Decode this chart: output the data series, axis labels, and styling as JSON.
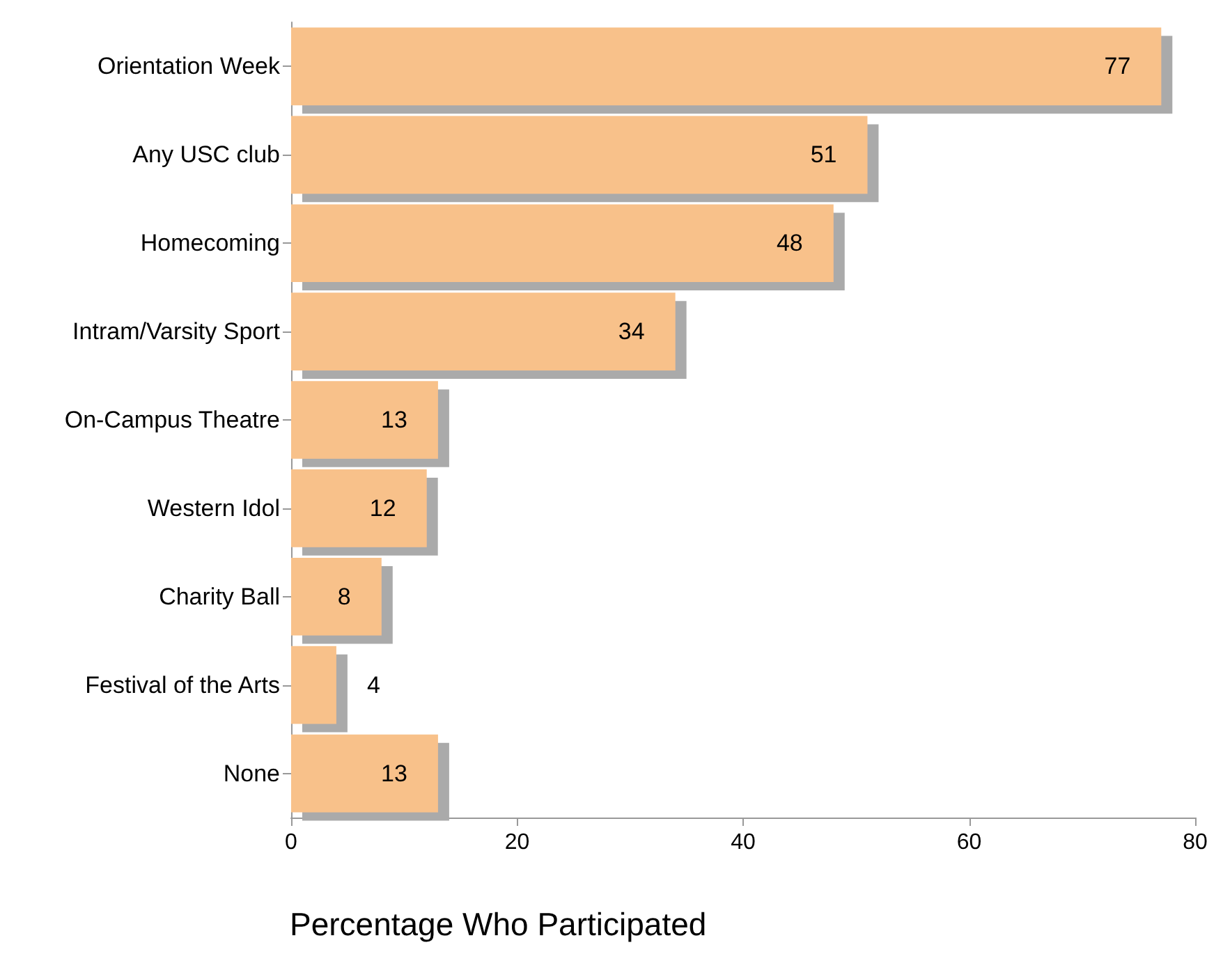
{
  "chart_data": {
    "type": "bar",
    "orientation": "horizontal",
    "xlabel": "Percentage Who Participated",
    "categories": [
      "Orientation Week",
      "Any USC club",
      "Homecoming",
      "Intram/Varsity Sport",
      "On-Campus Theatre",
      "Western Idol",
      "Charity Ball",
      "Festival of the Arts",
      "None"
    ],
    "values": [
      77,
      51,
      48,
      34,
      13,
      12,
      8,
      4,
      13
    ],
    "color": "#f8c18a",
    "xlim": [
      0,
      80
    ],
    "xticks": [
      0,
      20,
      40,
      60,
      80
    ],
    "grid": false,
    "data_labels": true
  }
}
